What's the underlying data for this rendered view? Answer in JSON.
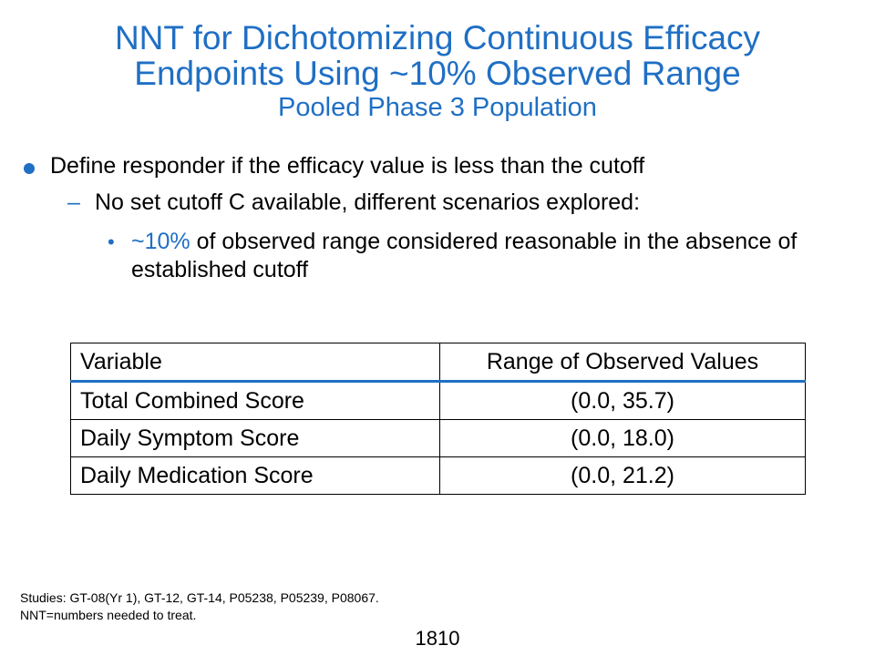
{
  "title": {
    "line1": "NNT for Dichotomizing Continuous Efficacy",
    "line2": "Endpoints Using ~10% Observed Range",
    "subtitle": "Pooled Phase 3 Population"
  },
  "bullets": {
    "level1": "Define responder if the efficacy value is less than the cutoff",
    "level2": "No set cutoff C available, different scenarios explored:",
    "level3_highlight": "~10%",
    "level3_text": " of observed range considered reasonable in the absence of established cutoff"
  },
  "table": {
    "headers": [
      "Variable",
      "Range of Observed Values"
    ],
    "rows": [
      [
        "Total Combined Score",
        "(0.0, 35.7)"
      ],
      [
        "Daily Symptom Score",
        "(0.0, 18.0)"
      ],
      [
        "Daily Medication Score",
        "(0.0, 21.2)"
      ]
    ]
  },
  "footnotes": [
    "Studies: GT-08(Yr 1), GT-12, GT-14, P05238, P05239, P08067.",
    "NNT=numbers needed to treat."
  ],
  "page_number": "1810",
  "colors": {
    "accent": "#1f6fc4",
    "text": "#000000"
  }
}
